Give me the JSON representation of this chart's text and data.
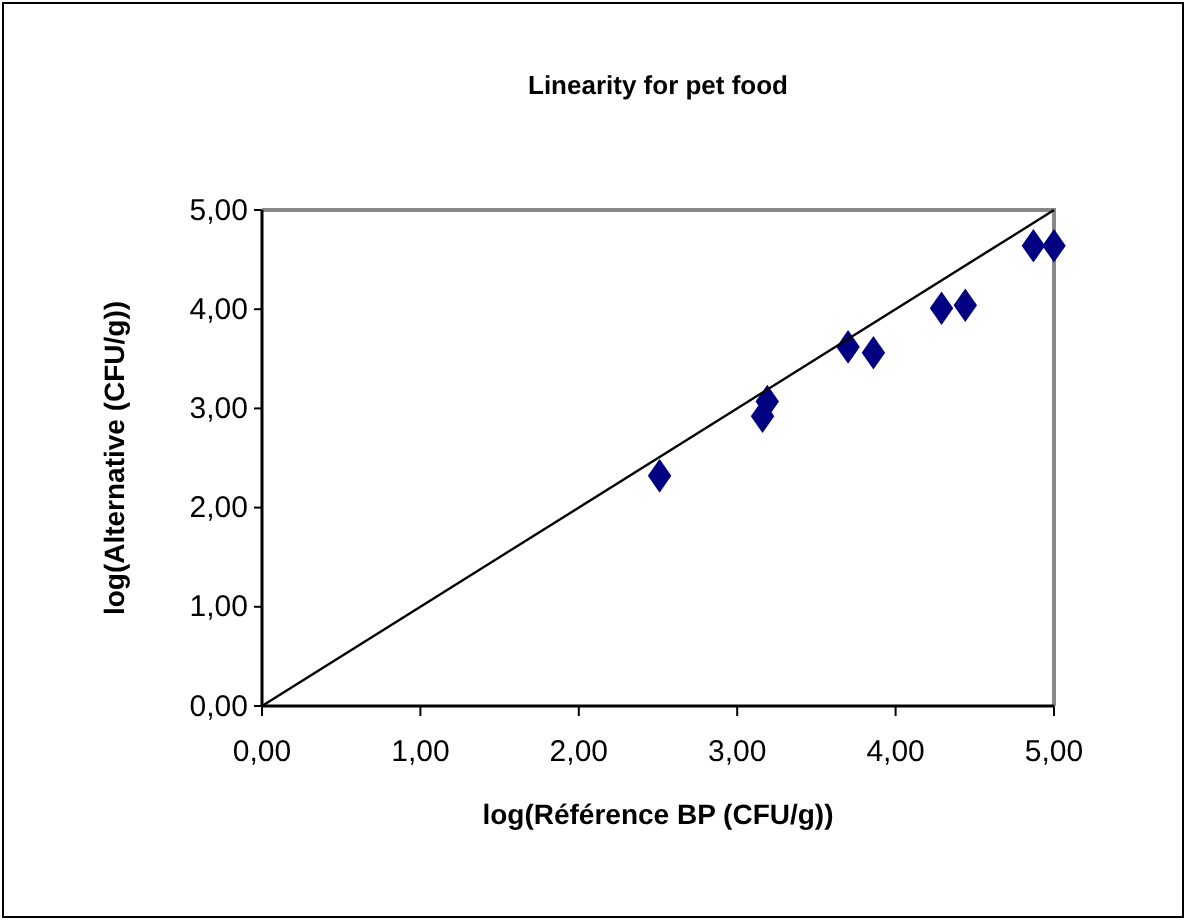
{
  "chart_data": {
    "type": "scatter",
    "title": "Linearity for pet food",
    "xlabel": "log(Référence BP (CFU/g))",
    "ylabel": "log(Alternative (CFU/g))",
    "xlim": [
      0,
      5
    ],
    "ylim": [
      0,
      5
    ],
    "xticks": [
      {
        "value": 0,
        "label": "0,00"
      },
      {
        "value": 1,
        "label": "1,00"
      },
      {
        "value": 2,
        "label": "2,00"
      },
      {
        "value": 3,
        "label": "3,00"
      },
      {
        "value": 4,
        "label": "4,00"
      },
      {
        "value": 5,
        "label": "5,00"
      }
    ],
    "yticks": [
      {
        "value": 0,
        "label": "0,00"
      },
      {
        "value": 1,
        "label": "1,00"
      },
      {
        "value": 2,
        "label": "2,00"
      },
      {
        "value": 3,
        "label": "3,00"
      },
      {
        "value": 4,
        "label": "4,00"
      },
      {
        "value": 5,
        "label": "5,00"
      }
    ],
    "grid": false,
    "series": [
      {
        "marker": "diamond",
        "color": "#000080",
        "x": [
          2.51,
          3.16,
          3.19,
          3.7,
          3.86,
          4.29,
          4.44,
          4.87,
          5.0
        ],
        "values": [
          2.32,
          2.92,
          3.07,
          3.62,
          3.56,
          4.01,
          4.04,
          4.64,
          4.64
        ]
      },
      {
        "type": "line",
        "color": "#000000",
        "x": [
          0,
          5
        ],
        "values": [
          0,
          5
        ]
      }
    ]
  }
}
